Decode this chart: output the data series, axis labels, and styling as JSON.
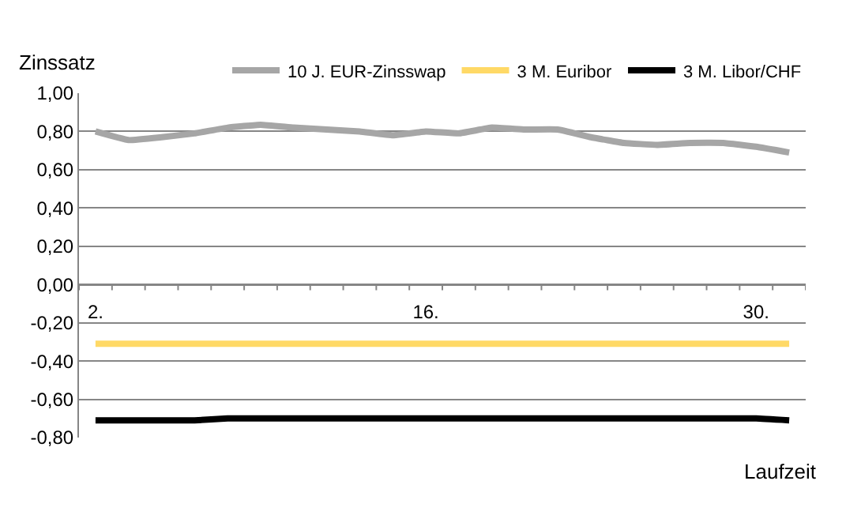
{
  "chart_data": {
    "type": "line",
    "ylabel": "Zinssatz",
    "xlabel": "Laufzeit",
    "categories": [
      "2.",
      null,
      null,
      null,
      null,
      null,
      null,
      null,
      null,
      null,
      "16.",
      null,
      null,
      null,
      null,
      null,
      null,
      null,
      null,
      null,
      "30.",
      null
    ],
    "series": [
      {
        "name": "10 J. EUR-Zinsswap",
        "color": "#a6a6a6",
        "values": [
          0.8,
          0.755,
          0.77,
          0.79,
          0.82,
          0.835,
          0.82,
          0.81,
          0.8,
          0.78,
          0.8,
          0.79,
          0.82,
          0.81,
          0.81,
          0.77,
          0.74,
          0.73,
          0.74,
          0.74,
          0.72,
          0.69
        ]
      },
      {
        "name": "3 M. Euribor",
        "color": "#ffd966",
        "values": [
          -0.31,
          -0.31,
          -0.31,
          -0.31,
          -0.31,
          -0.31,
          -0.31,
          -0.31,
          -0.31,
          -0.31,
          -0.31,
          -0.31,
          -0.31,
          -0.31,
          -0.31,
          -0.31,
          -0.31,
          -0.31,
          -0.31,
          -0.31,
          -0.31,
          -0.31
        ]
      },
      {
        "name": "3 M. Libor/CHF",
        "color": "#000000",
        "values": [
          -0.71,
          -0.71,
          -0.71,
          -0.71,
          -0.7,
          -0.7,
          -0.7,
          -0.7,
          -0.7,
          -0.7,
          -0.7,
          -0.7,
          -0.7,
          -0.7,
          -0.7,
          -0.7,
          -0.7,
          -0.7,
          -0.7,
          -0.7,
          -0.7,
          -0.71
        ]
      }
    ],
    "ylim": [
      -0.8,
      1.0
    ],
    "yticks": [
      {
        "value": -0.8,
        "label": "-0,80"
      },
      {
        "value": -0.6,
        "label": "-0,60"
      },
      {
        "value": -0.4,
        "label": "-0,40"
      },
      {
        "value": -0.2,
        "label": "-0,20"
      },
      {
        "value": 0,
        "label": "0,00"
      },
      {
        "value": 0.2,
        "label": "0,20"
      },
      {
        "value": 0.4,
        "label": "0,40"
      },
      {
        "value": 0.6,
        "label": "0,60"
      },
      {
        "value": 0.8,
        "label": "0,80"
      },
      {
        "value": 1.0,
        "label": "1,00"
      }
    ],
    "grid": "y",
    "legend": "top",
    "marker": "none",
    "line_style": "solid"
  }
}
